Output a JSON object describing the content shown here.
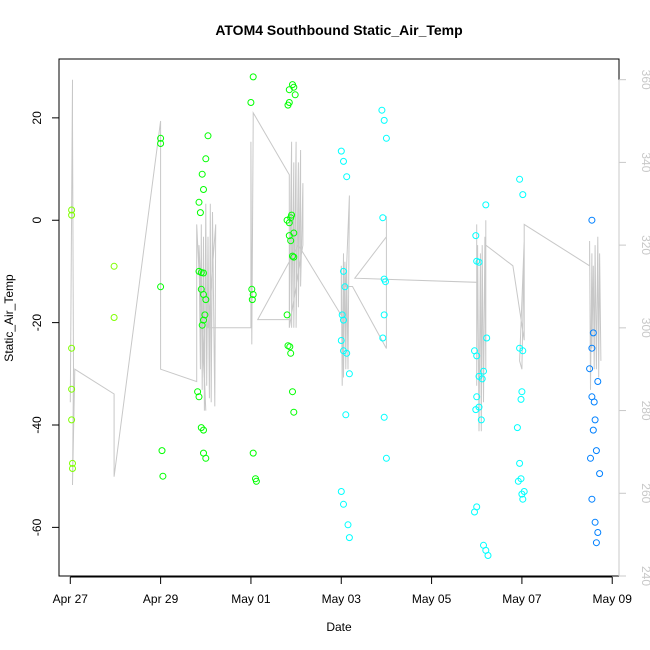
{
  "chart_data": {
    "type": "scatter",
    "title": "ATOM4 Southbound Static_Air_Temp",
    "xlabel": "Date",
    "ylabel": "Static_Air_Temp",
    "x_unit": "days since Apr 27",
    "xlim": [
      -0.25,
      12.15
    ],
    "ylim": [
      -69.5,
      31.5
    ],
    "x_ticks": [
      0,
      2,
      4,
      6,
      8,
      10,
      12
    ],
    "x_tick_labels": [
      "Apr 27",
      "Apr 29",
      "May 01",
      "May 03",
      "May 05",
      "May 07",
      "May 09"
    ],
    "y_ticks": [
      -60,
      -40,
      -20,
      0,
      20
    ],
    "y_tick_labels": [
      "-60",
      "-40",
      "-20",
      "0",
      "20"
    ],
    "y2_lim": [
      240,
      365
    ],
    "y2_ticks": [
      240,
      260,
      280,
      300,
      320,
      340,
      360
    ],
    "y2_tick_labels": [
      "240",
      "260",
      "280",
      "300",
      "320",
      "340",
      "360"
    ],
    "grid": false,
    "colors": {
      "line": "#c8c8c8",
      "points": [
        "#7fff00",
        "#00ff00",
        "#00ffff",
        "#0080ff"
      ]
    },
    "series": [
      {
        "name": "Static_Air_Temp",
        "marker": "open-circle",
        "points": [
          {
            "x": 0.03,
            "y": 2.0,
            "c": 0
          },
          {
            "x": 0.03,
            "y": 1.0,
            "c": 0
          },
          {
            "x": 0.03,
            "y": -25.0,
            "c": 0
          },
          {
            "x": 0.03,
            "y": -33.0,
            "c": 0
          },
          {
            "x": 0.03,
            "y": -39.0,
            "c": 0
          },
          {
            "x": 0.05,
            "y": -47.5,
            "c": 0
          },
          {
            "x": 0.05,
            "y": -48.5,
            "c": 0
          },
          {
            "x": 0.97,
            "y": -9.0,
            "c": 0
          },
          {
            "x": 0.97,
            "y": -19.0,
            "c": 0
          },
          {
            "x": 2.0,
            "y": 16.0,
            "c": 1
          },
          {
            "x": 2.0,
            "y": 15.0,
            "c": 1
          },
          {
            "x": 2.0,
            "y": -13.0,
            "c": 1
          },
          {
            "x": 2.03,
            "y": -45.0,
            "c": 1
          },
          {
            "x": 2.05,
            "y": -50.0,
            "c": 1
          },
          {
            "x": 2.85,
            "y": 3.5,
            "c": 1
          },
          {
            "x": 2.88,
            "y": 1.5,
            "c": 1
          },
          {
            "x": 2.85,
            "y": -10.0,
            "c": 1
          },
          {
            "x": 2.9,
            "y": -10.2,
            "c": 1
          },
          {
            "x": 2.95,
            "y": -10.3,
            "c": 1
          },
          {
            "x": 2.9,
            "y": -13.5,
            "c": 1
          },
          {
            "x": 2.95,
            "y": -14.5,
            "c": 1
          },
          {
            "x": 3.0,
            "y": -15.5,
            "c": 1
          },
          {
            "x": 2.98,
            "y": -18.5,
            "c": 1
          },
          {
            "x": 2.92,
            "y": -20.5,
            "c": 1
          },
          {
            "x": 2.95,
            "y": -19.5,
            "c": 1
          },
          {
            "x": 2.82,
            "y": -33.5,
            "c": 1
          },
          {
            "x": 2.85,
            "y": -34.5,
            "c": 1
          },
          {
            "x": 2.9,
            "y": -40.5,
            "c": 1
          },
          {
            "x": 2.95,
            "y": -41.0,
            "c": 1
          },
          {
            "x": 2.95,
            "y": -45.5,
            "c": 1
          },
          {
            "x": 3.0,
            "y": -46.5,
            "c": 1
          },
          {
            "x": 2.92,
            "y": 9.0,
            "c": 1
          },
          {
            "x": 2.95,
            "y": 6.0,
            "c": 1
          },
          {
            "x": 3.0,
            "y": 12.0,
            "c": 1
          },
          {
            "x": 3.05,
            "y": 16.5,
            "c": 1
          },
          {
            "x": 4.0,
            "y": 23.0,
            "c": 1
          },
          {
            "x": 4.05,
            "y": 28.0,
            "c": 1
          },
          {
            "x": 4.02,
            "y": -13.5,
            "c": 1
          },
          {
            "x": 4.05,
            "y": -14.5,
            "c": 1
          },
          {
            "x": 4.03,
            "y": -15.5,
            "c": 1
          },
          {
            "x": 4.05,
            "y": -45.5,
            "c": 1
          },
          {
            "x": 4.1,
            "y": -50.5,
            "c": 1
          },
          {
            "x": 4.12,
            "y": -51.0,
            "c": 1
          },
          {
            "x": 4.82,
            "y": 22.5,
            "c": 1
          },
          {
            "x": 4.85,
            "y": 23.0,
            "c": 1
          },
          {
            "x": 4.85,
            "y": 25.5,
            "c": 1
          },
          {
            "x": 4.92,
            "y": 26.5,
            "c": 1
          },
          {
            "x": 4.95,
            "y": 26.0,
            "c": 1
          },
          {
            "x": 4.98,
            "y": 24.5,
            "c": 1
          },
          {
            "x": 4.8,
            "y": 0.0,
            "c": 1
          },
          {
            "x": 4.85,
            "y": -0.5,
            "c": 1
          },
          {
            "x": 4.88,
            "y": 0.5,
            "c": 1
          },
          {
            "x": 4.9,
            "y": 1.0,
            "c": 1
          },
          {
            "x": 4.85,
            "y": -3.0,
            "c": 1
          },
          {
            "x": 4.88,
            "y": -4.0,
            "c": 1
          },
          {
            "x": 4.95,
            "y": -2.5,
            "c": 1
          },
          {
            "x": 4.92,
            "y": -7.0,
            "c": 1
          },
          {
            "x": 4.95,
            "y": -7.2,
            "c": 1
          },
          {
            "x": 4.8,
            "y": -18.5,
            "c": 1
          },
          {
            "x": 4.82,
            "y": -24.5,
            "c": 1
          },
          {
            "x": 4.86,
            "y": -24.7,
            "c": 1
          },
          {
            "x": 4.88,
            "y": -26.0,
            "c": 1
          },
          {
            "x": 4.92,
            "y": -33.5,
            "c": 1
          },
          {
            "x": 4.95,
            "y": -37.5,
            "c": 1
          },
          {
            "x": 6.0,
            "y": 13.5,
            "c": 2
          },
          {
            "x": 6.05,
            "y": 11.5,
            "c": 2
          },
          {
            "x": 6.12,
            "y": 8.5,
            "c": 2
          },
          {
            "x": 6.05,
            "y": -10.0,
            "c": 2
          },
          {
            "x": 6.08,
            "y": -13.0,
            "c": 2
          },
          {
            "x": 6.02,
            "y": -18.5,
            "c": 2
          },
          {
            "x": 6.05,
            "y": -19.5,
            "c": 2
          },
          {
            "x": 6.0,
            "y": -23.5,
            "c": 2
          },
          {
            "x": 6.05,
            "y": -25.5,
            "c": 2
          },
          {
            "x": 6.12,
            "y": -26.0,
            "c": 2
          },
          {
            "x": 6.18,
            "y": -30.0,
            "c": 2
          },
          {
            "x": 6.1,
            "y": -38.0,
            "c": 2
          },
          {
            "x": 6.0,
            "y": -53.0,
            "c": 2
          },
          {
            "x": 6.05,
            "y": -55.5,
            "c": 2
          },
          {
            "x": 6.15,
            "y": -59.5,
            "c": 2
          },
          {
            "x": 6.18,
            "y": -62.0,
            "c": 2
          },
          {
            "x": 6.9,
            "y": 21.5,
            "c": 2
          },
          {
            "x": 6.95,
            "y": 19.5,
            "c": 2
          },
          {
            "x": 7.0,
            "y": 16.0,
            "c": 2
          },
          {
            "x": 6.92,
            "y": 0.5,
            "c": 2
          },
          {
            "x": 6.95,
            "y": -11.5,
            "c": 2
          },
          {
            "x": 6.98,
            "y": -12.0,
            "c": 2
          },
          {
            "x": 6.95,
            "y": -18.5,
            "c": 2
          },
          {
            "x": 6.92,
            "y": -23.0,
            "c": 2
          },
          {
            "x": 6.95,
            "y": -38.5,
            "c": 2
          },
          {
            "x": 7.0,
            "y": -46.5,
            "c": 2
          },
          {
            "x": 8.98,
            "y": -3.0,
            "c": 2
          },
          {
            "x": 9.0,
            "y": -8.0,
            "c": 2
          },
          {
            "x": 9.05,
            "y": -8.2,
            "c": 2
          },
          {
            "x": 9.2,
            "y": 3.0,
            "c": 2
          },
          {
            "x": 8.95,
            "y": -25.5,
            "c": 2
          },
          {
            "x": 9.0,
            "y": -26.5,
            "c": 2
          },
          {
            "x": 9.05,
            "y": -30.5,
            "c": 2
          },
          {
            "x": 9.12,
            "y": -31.0,
            "c": 2
          },
          {
            "x": 9.15,
            "y": -29.5,
            "c": 2
          },
          {
            "x": 9.22,
            "y": -23.0,
            "c": 2
          },
          {
            "x": 9.0,
            "y": -34.5,
            "c": 2
          },
          {
            "x": 8.98,
            "y": -37.0,
            "c": 2
          },
          {
            "x": 9.05,
            "y": -36.5,
            "c": 2
          },
          {
            "x": 9.1,
            "y": -39.0,
            "c": 2
          },
          {
            "x": 8.95,
            "y": -57.0,
            "c": 2
          },
          {
            "x": 9.0,
            "y": -56.0,
            "c": 2
          },
          {
            "x": 9.15,
            "y": -63.5,
            "c": 2
          },
          {
            "x": 9.2,
            "y": -64.5,
            "c": 2
          },
          {
            "x": 9.25,
            "y": -65.5,
            "c": 2
          },
          {
            "x": 9.95,
            "y": 8.0,
            "c": 2
          },
          {
            "x": 10.02,
            "y": 5.0,
            "c": 2
          },
          {
            "x": 9.95,
            "y": -25.0,
            "c": 2
          },
          {
            "x": 10.02,
            "y": -25.5,
            "c": 2
          },
          {
            "x": 10.0,
            "y": -33.5,
            "c": 2
          },
          {
            "x": 9.98,
            "y": -35.0,
            "c": 2
          },
          {
            "x": 9.9,
            "y": -40.5,
            "c": 2
          },
          {
            "x": 9.95,
            "y": -47.5,
            "c": 2
          },
          {
            "x": 9.92,
            "y": -51.0,
            "c": 2
          },
          {
            "x": 9.98,
            "y": -50.5,
            "c": 2
          },
          {
            "x": 10.0,
            "y": -53.5,
            "c": 2
          },
          {
            "x": 10.05,
            "y": -53.0,
            "c": 2
          },
          {
            "x": 10.02,
            "y": -54.5,
            "c": 2
          },
          {
            "x": 11.55,
            "y": 0.0,
            "c": 3
          },
          {
            "x": 11.58,
            "y": -22.0,
            "c": 3
          },
          {
            "x": 11.55,
            "y": -25.0,
            "c": 3
          },
          {
            "x": 11.5,
            "y": -29.0,
            "c": 3
          },
          {
            "x": 11.68,
            "y": -31.5,
            "c": 3
          },
          {
            "x": 11.55,
            "y": -34.5,
            "c": 3
          },
          {
            "x": 11.6,
            "y": -35.5,
            "c": 3
          },
          {
            "x": 11.62,
            "y": -39.0,
            "c": 3
          },
          {
            "x": 11.58,
            "y": -41.0,
            "c": 3
          },
          {
            "x": 11.65,
            "y": -45.0,
            "c": 3
          },
          {
            "x": 11.52,
            "y": -46.5,
            "c": 3
          },
          {
            "x": 11.72,
            "y": -49.5,
            "c": 3
          },
          {
            "x": 11.55,
            "y": -54.5,
            "c": 3
          },
          {
            "x": 11.62,
            "y": -59.0,
            "c": 3
          },
          {
            "x": 11.68,
            "y": -61.0,
            "c": 3
          },
          {
            "x": 11.65,
            "y": -63.0,
            "c": 3
          }
        ]
      },
      {
        "name": "secondary (right axis)",
        "axis": "y2",
        "type": "line",
        "color": "#c8c8c8",
        "points": [
          [
            0.0,
            282
          ],
          [
            0.05,
            360
          ],
          [
            0.05,
            350
          ],
          [
            0.07,
            290
          ],
          [
            0.05,
            262
          ],
          [
            0.1,
            290
          ],
          [
            0.97,
            284
          ],
          [
            0.97,
            264
          ],
          [
            2.0,
            350
          ],
          [
            2.0,
            290
          ],
          [
            2.8,
            287
          ],
          [
            2.8,
            325
          ],
          [
            3.0,
            280
          ],
          [
            2.85,
            320
          ],
          [
            2.88,
            290
          ],
          [
            2.9,
            325
          ],
          [
            2.92,
            285
          ],
          [
            2.95,
            322
          ],
          [
            2.97,
            280
          ],
          [
            3.0,
            330
          ],
          [
            3.02,
            286
          ],
          [
            3.05,
            322
          ],
          [
            3.08,
            283
          ],
          [
            3.1,
            330
          ],
          [
            3.12,
            282
          ],
          [
            3.15,
            328
          ],
          [
            3.2,
            281
          ],
          [
            3.22,
            325
          ],
          [
            3.05,
            300
          ],
          [
            4.0,
            300
          ],
          [
            4.0,
            345
          ],
          [
            4.02,
            296
          ],
          [
            4.05,
            350
          ],
          [
            4.05,
            352
          ],
          [
            4.85,
            337
          ],
          [
            4.85,
            300
          ],
          [
            4.9,
            345
          ],
          [
            4.9,
            300
          ],
          [
            4.95,
            340
          ],
          [
            4.95,
            300
          ],
          [
            5.0,
            345
          ],
          [
            5.0,
            300
          ],
          [
            5.05,
            340
          ],
          [
            5.05,
            305
          ],
          [
            5.1,
            343
          ],
          [
            5.1,
            310
          ],
          [
            5.15,
            335
          ],
          [
            5.15,
            320
          ],
          [
            4.85,
            300
          ],
          [
            4.85,
            302
          ],
          [
            4.15,
            302
          ],
          [
            5.05,
            320
          ],
          [
            6.0,
            303
          ],
          [
            6.0,
            315
          ],
          [
            6.02,
            286
          ],
          [
            6.05,
            318
          ],
          [
            6.05,
            288
          ],
          [
            6.08,
            316
          ],
          [
            6.1,
            290
          ],
          [
            6.12,
            314
          ],
          [
            6.15,
            290
          ],
          [
            6.18,
            332
          ],
          [
            6.1,
            310
          ],
          [
            6.25,
            310
          ],
          [
            7.0,
            295
          ],
          [
            7.0,
            327
          ],
          [
            7.0,
            322
          ],
          [
            6.3,
            312
          ],
          [
            9.0,
            311
          ],
          [
            9.0,
            325
          ],
          [
            9.0,
            286
          ],
          [
            9.02,
            320
          ],
          [
            9.05,
            275
          ],
          [
            9.08,
            318
          ],
          [
            9.1,
            275
          ],
          [
            9.12,
            320
          ],
          [
            9.15,
            282
          ],
          [
            9.18,
            322
          ],
          [
            9.2,
            290
          ],
          [
            9.2,
            326
          ],
          [
            9.2,
            320
          ],
          [
            9.8,
            315
          ],
          [
            10.05,
            297
          ],
          [
            10.05,
            321
          ],
          [
            9.95,
            292
          ],
          [
            10.0,
            290
          ],
          [
            10.05,
            320
          ],
          [
            10.05,
            325
          ],
          [
            11.5,
            315
          ],
          [
            11.5,
            321
          ],
          [
            11.52,
            285
          ],
          [
            11.55,
            318
          ],
          [
            11.55,
            295
          ],
          [
            11.58,
            315
          ],
          [
            11.6,
            290
          ],
          [
            11.62,
            320
          ],
          [
            11.65,
            290
          ],
          [
            11.68,
            322
          ],
          [
            11.7,
            288
          ],
          [
            11.72,
            318
          ],
          [
            11.75,
            292
          ]
        ]
      }
    ]
  }
}
